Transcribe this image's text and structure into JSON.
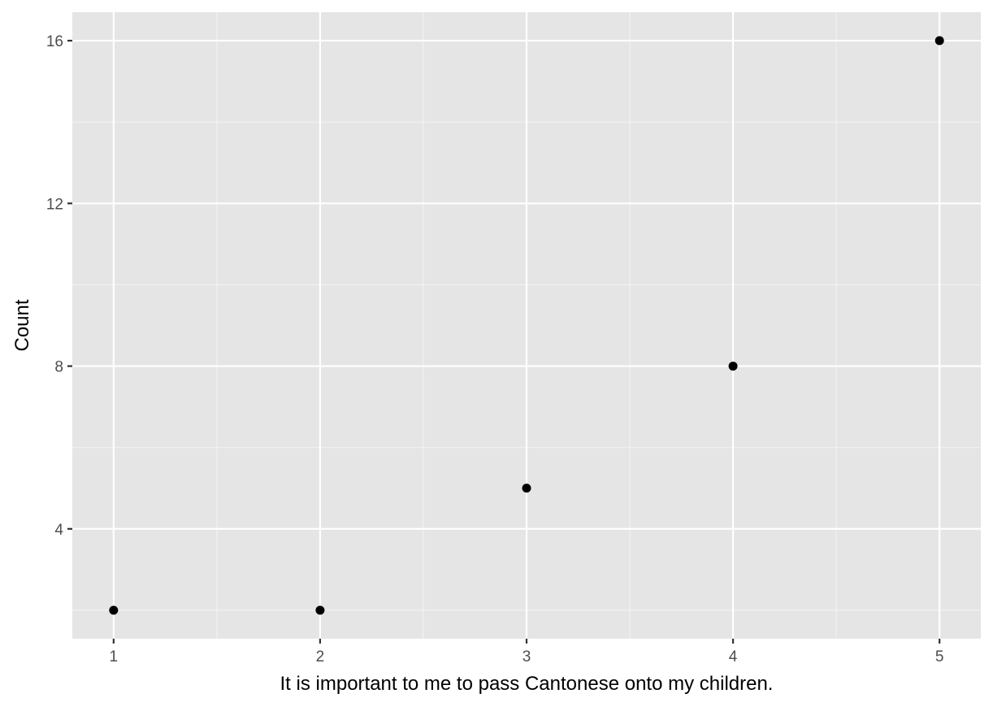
{
  "colors": {
    "panel_background": "#E5E5E5",
    "major_grid": "#FFFFFF",
    "minor_grid": "#F2F2F2",
    "point": "#000000",
    "tick_text": "#4D4D4D",
    "axis_title": "#000000"
  },
  "chart_data": {
    "type": "scatter",
    "title": "",
    "xlabel": "It is important to me to pass Cantonese onto my children.",
    "ylabel": "Count",
    "x": [
      1,
      2,
      3,
      4,
      5
    ],
    "y": [
      2,
      2,
      5,
      8,
      16
    ],
    "xlim": [
      0.8,
      5.2
    ],
    "ylim": [
      1.3,
      16.7
    ],
    "x_ticks": [
      1,
      2,
      3,
      4,
      5
    ],
    "x_tick_labels": [
      "1",
      "2",
      "3",
      "4",
      "5"
    ],
    "y_ticks": [
      4,
      8,
      12,
      16
    ],
    "y_tick_labels": [
      "4",
      "8",
      "12",
      "16"
    ],
    "x_minor_ticks": [
      1.5,
      2.5,
      3.5,
      4.5
    ],
    "y_minor_ticks": [
      2,
      6,
      10,
      14
    ],
    "grid": true,
    "legend": "none"
  }
}
